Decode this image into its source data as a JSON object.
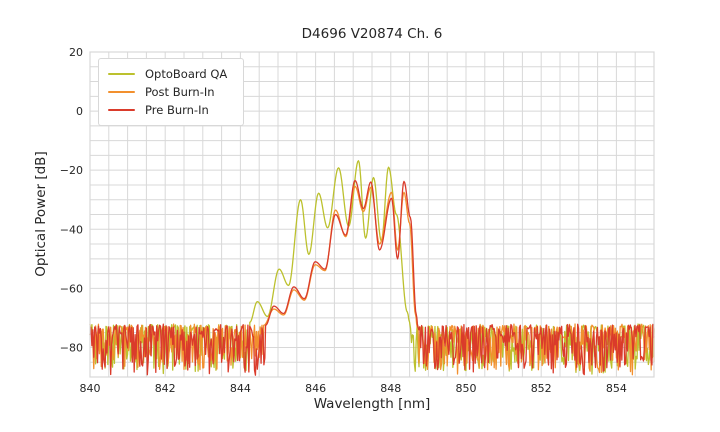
{
  "figure": {
    "background": "#ffffff"
  },
  "chart_data": {
    "type": "line",
    "title": "D4696 V20874 Ch. 6",
    "xlabel": "Wavelength [nm]",
    "ylabel": "Optical Power [dB]",
    "xlim": [
      840,
      855
    ],
    "ylim": [
      -90,
      20
    ],
    "x_ticks": [
      {
        "v": 840,
        "label": "840"
      },
      {
        "v": 842,
        "label": "842"
      },
      {
        "v": 844,
        "label": "844"
      },
      {
        "v": 846,
        "label": "846"
      },
      {
        "v": 848,
        "label": "848"
      },
      {
        "v": 850,
        "label": "850"
      },
      {
        "v": 852,
        "label": "852"
      },
      {
        "v": 854,
        "label": "854"
      }
    ],
    "y_ticks": [
      {
        "v": 20,
        "label": "20"
      },
      {
        "v": 0,
        "label": "0"
      },
      {
        "v": -20,
        "label": "−20"
      },
      {
        "v": -40,
        "label": "−40"
      },
      {
        "v": -60,
        "label": "−60"
      },
      {
        "v": -80,
        "label": "−80"
      }
    ],
    "grid": {
      "x_step": 0.5,
      "y_step": 5,
      "color": "#d8d8d8",
      "frame_color": "#d8d8d8"
    },
    "legend_position": "upper left",
    "noise_floor": {
      "top_db": -72.6,
      "bottom_db": -88,
      "x_step_nm": 0.025
    },
    "series": [
      {
        "name": "OptoBoard QA",
        "color": "#bcc12e",
        "seed": 11,
        "noise_until": 844.25,
        "noise_from": 848.5,
        "envelope": [
          [
            844.25,
            -71.5
          ],
          [
            844.45,
            -64.5
          ],
          [
            844.72,
            -69.5
          ],
          [
            845.03,
            -53.5
          ],
          [
            845.28,
            -59.0
          ],
          [
            845.6,
            -30.0
          ],
          [
            845.82,
            -48.5
          ],
          [
            846.08,
            -27.8
          ],
          [
            846.32,
            -39.5
          ],
          [
            846.61,
            -19.2
          ],
          [
            846.88,
            -39.0
          ],
          [
            847.14,
            -16.8
          ],
          [
            847.33,
            -43.0
          ],
          [
            847.54,
            -22.5
          ],
          [
            847.75,
            -44.0
          ],
          [
            847.94,
            -19.0
          ],
          [
            848.15,
            -35.0
          ],
          [
            848.44,
            -68.0
          ],
          [
            848.5,
            -71.5
          ]
        ]
      },
      {
        "name": "Post Burn-In",
        "color": "#f2902e",
        "seed": 22,
        "noise_until": 844.62,
        "noise_from": 848.7,
        "envelope": [
          [
            844.62,
            -72.5
          ],
          [
            844.89,
            -67.0
          ],
          [
            845.15,
            -69.0
          ],
          [
            845.42,
            -60.5
          ],
          [
            845.7,
            -64.0
          ],
          [
            845.99,
            -52.0
          ],
          [
            846.25,
            -54.0
          ],
          [
            846.53,
            -33.5
          ],
          [
            846.8,
            -42.5
          ],
          [
            847.05,
            -25.5
          ],
          [
            847.27,
            -34.0
          ],
          [
            847.47,
            -25.8
          ],
          [
            847.7,
            -45.0
          ],
          [
            848.02,
            -27.5
          ],
          [
            848.18,
            -47.0
          ],
          [
            848.35,
            -27.5
          ],
          [
            848.5,
            -38.0
          ],
          [
            848.66,
            -69.0
          ],
          [
            848.7,
            -73.0
          ]
        ]
      },
      {
        "name": "Pre Burn-In",
        "color": "#da3b2b",
        "seed": 33,
        "noise_until": 844.67,
        "noise_from": 848.72,
        "envelope": [
          [
            844.67,
            -72.5
          ],
          [
            844.89,
            -66.0
          ],
          [
            845.15,
            -68.5
          ],
          [
            845.42,
            -59.5
          ],
          [
            845.7,
            -63.5
          ],
          [
            845.99,
            -51.0
          ],
          [
            846.25,
            -53.5
          ],
          [
            846.53,
            -35.0
          ],
          [
            846.8,
            -42.0
          ],
          [
            847.05,
            -23.5
          ],
          [
            847.27,
            -33.0
          ],
          [
            847.47,
            -24.0
          ],
          [
            847.7,
            -47.0
          ],
          [
            848.02,
            -29.5
          ],
          [
            848.18,
            -50.0
          ],
          [
            848.35,
            -23.8
          ],
          [
            848.52,
            -36.0
          ],
          [
            848.68,
            -69.0
          ],
          [
            848.72,
            -73.0
          ]
        ]
      }
    ]
  }
}
